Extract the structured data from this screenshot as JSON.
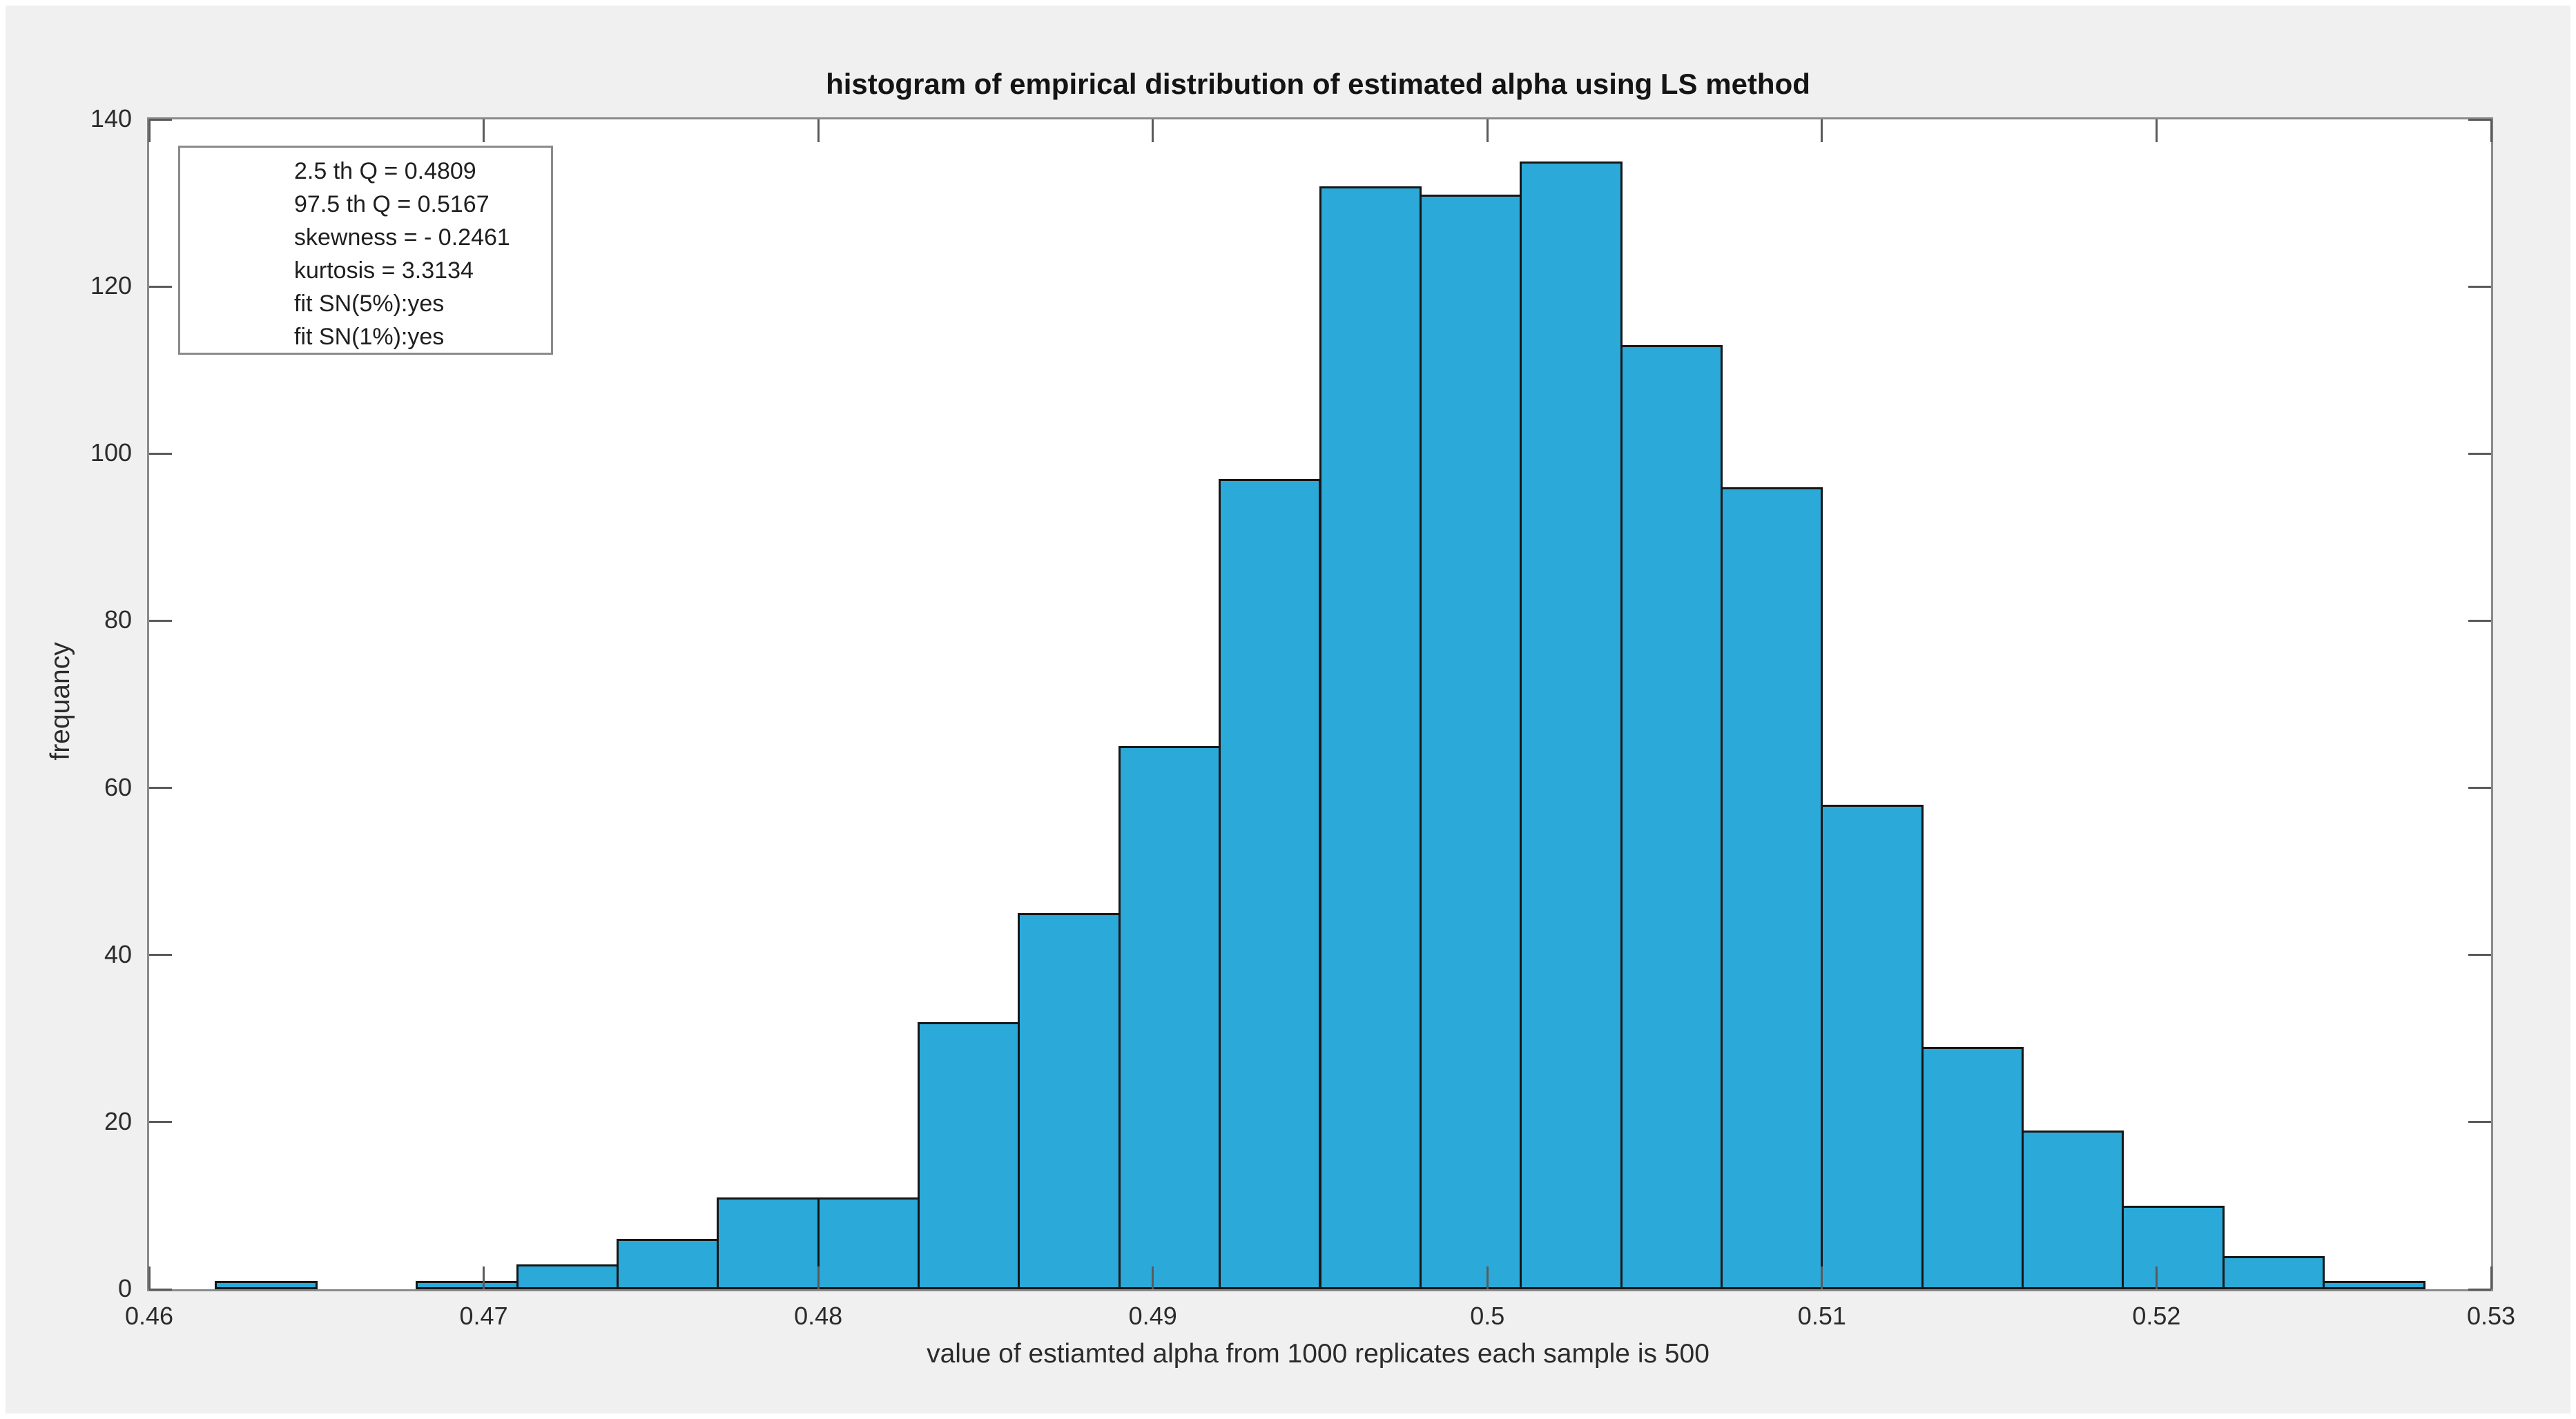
{
  "chart_data": {
    "type": "bar",
    "subtype": "histogram",
    "title": "histogram of empirical distribution of estimated alpha using LS method",
    "xlabel": "value of estiamted alpha from 1000 replicates each sample is 500",
    "ylabel": "frequancy",
    "bin_start": 0.462,
    "bin_width": 0.003,
    "counts": [
      1,
      0,
      1,
      3,
      6,
      11,
      11,
      32,
      45,
      65,
      97,
      132,
      131,
      135,
      113,
      96,
      58,
      29,
      19,
      10,
      4,
      1
    ],
    "total_replicates": 1000,
    "xlim": [
      0.46,
      0.53
    ],
    "ylim": [
      0,
      140
    ],
    "xticks": [
      0.46,
      0.47,
      0.48,
      0.49,
      0.5,
      0.51,
      0.52,
      0.53
    ],
    "xtick_labels": [
      "0.46",
      "0.47",
      "0.48",
      "0.49",
      "0.5",
      "0.51",
      "0.52",
      "0.53"
    ],
    "yticks": [
      0,
      20,
      40,
      60,
      80,
      100,
      120,
      140
    ],
    "ytick_labels": [
      "0",
      "20",
      "40",
      "60",
      "80",
      "100",
      "120",
      "140"
    ],
    "grid": false,
    "box": true,
    "tick_direction": "in",
    "annotation": {
      "lines": [
        "2.5 th Q = 0.4809",
        "97.5 th Q = 0.5167",
        "skewness = - 0.2461",
        "kurtosis = 3.3134",
        "fit SN(5%):yes",
        "fit SN(1%):yes"
      ],
      "position": "top-left"
    },
    "colors": {
      "bar_fill": "#2baad9",
      "bar_edge": "#161616",
      "axes_background": "#ffffff",
      "figure_background": "#f0f0f0",
      "spine": "#8a8a8a",
      "tick": "#5a5a5a",
      "text": "#2b2b2b",
      "title_text": "#141414"
    }
  }
}
